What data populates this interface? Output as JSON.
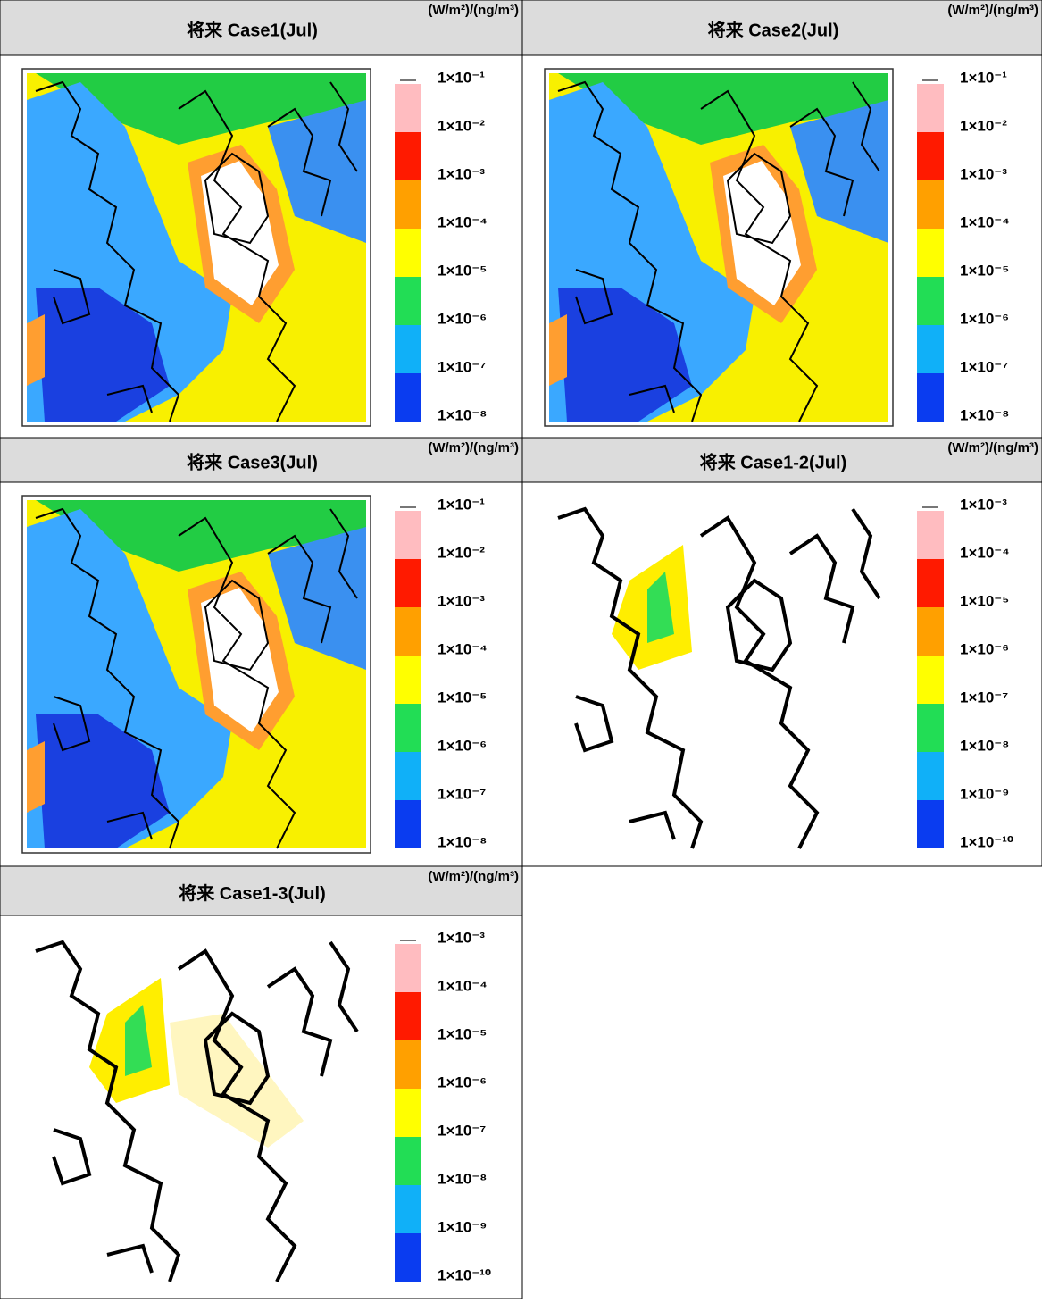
{
  "panels": [
    {
      "title": "将来 Case1(Jul)",
      "unit": "(W/m²)/(ng/m³)",
      "legend_labels": [
        "1×10⁻¹",
        "1×10⁻²",
        "1×10⁻³",
        "1×10⁻⁴",
        "1×10⁻⁵",
        "1×10⁻⁶",
        "1×10⁻⁷",
        "1×10⁻⁸"
      ]
    },
    {
      "title": "将来 Case2(Jul)",
      "unit": "(W/m²)/(ng/m³)",
      "legend_labels": [
        "1×10⁻¹",
        "1×10⁻²",
        "1×10⁻³",
        "1×10⁻⁴",
        "1×10⁻⁵",
        "1×10⁻⁶",
        "1×10⁻⁷",
        "1×10⁻⁸"
      ]
    },
    {
      "title": "将来 Case3(Jul)",
      "unit": "(W/m²)/(ng/m³)",
      "legend_labels": [
        "1×10⁻¹",
        "1×10⁻²",
        "1×10⁻³",
        "1×10⁻⁴",
        "1×10⁻⁵",
        "1×10⁻⁶",
        "1×10⁻⁷",
        "1×10⁻⁸"
      ]
    },
    {
      "title": "将来 Case1-2(Jul)",
      "unit": "(W/m²)/(ng/m³)",
      "legend_labels": [
        "1×10⁻³",
        "1×10⁻⁴",
        "1×10⁻⁵",
        "1×10⁻⁶",
        "1×10⁻⁷",
        "1×10⁻⁸",
        "1×10⁻⁹",
        "1×10⁻¹⁰"
      ]
    },
    {
      "title": "将来 Case1-3(Jul)",
      "unit": "(W/m²)/(ng/m³)",
      "legend_labels": [
        "1×10⁻³",
        "1×10⁻⁴",
        "1×10⁻⁵",
        "1×10⁻⁶",
        "1×10⁻⁷",
        "1×10⁻⁸",
        "1×10⁻⁹",
        "1×10⁻¹⁰"
      ]
    }
  ],
  "legend_colors": [
    "#ffbcc0",
    "#ff1a00",
    "#ffa000",
    "#ffff00",
    "#22dd55",
    "#10b0f8",
    "#0a3cf0"
  ]
}
